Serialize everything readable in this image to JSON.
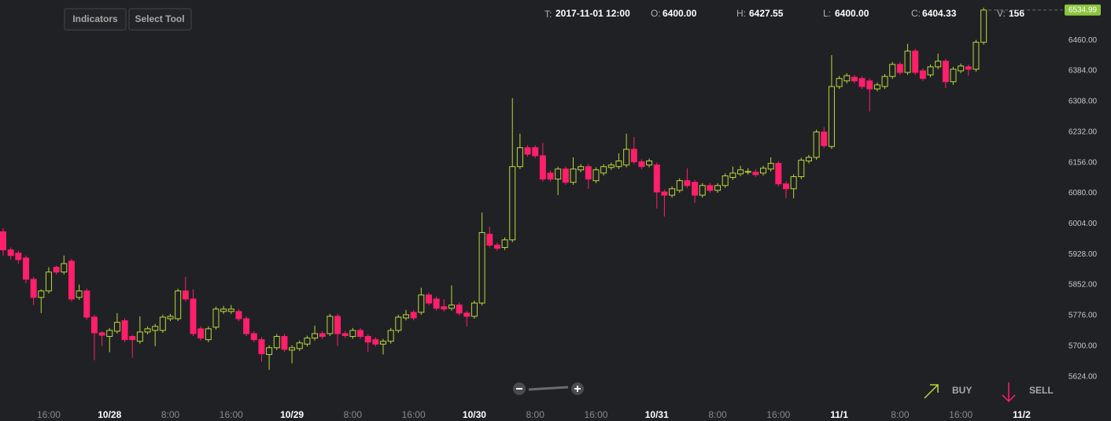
{
  "toolbar": [
    "Indicators",
    "Select Tool"
  ],
  "header": [
    {
      "label": "T:",
      "value": "2017-11-01 12:00"
    },
    {
      "label": "O:",
      "value": "6400.00"
    },
    {
      "label": "H:",
      "value": "6427.55"
    },
    {
      "label": "L:",
      "value": "6400.00"
    },
    {
      "label": "C:",
      "value": "6404.33"
    },
    {
      "label": "V:",
      "value": "156"
    }
  ],
  "actions": [
    "BUY",
    "SELL"
  ],
  "chart_data": {
    "type": "candlestick",
    "categories": [
      null,
      null,
      null,
      null,
      null,
      null,
      "16:00",
      null,
      null,
      null,
      null,
      null,
      null,
      null,
      "10/28",
      null,
      null,
      null,
      null,
      null,
      null,
      null,
      "8:00",
      null,
      null,
      null,
      null,
      null,
      null,
      null,
      "16:00",
      null,
      null,
      null,
      null,
      null,
      null,
      null,
      "10/29",
      null,
      null,
      null,
      null,
      null,
      null,
      null,
      "8:00",
      null,
      null,
      null,
      null,
      null,
      null,
      null,
      "16:00",
      null,
      null,
      null,
      null,
      null,
      null,
      null,
      "10/30",
      null,
      null,
      null,
      null,
      null,
      null,
      null,
      "8:00",
      null,
      null,
      null,
      null,
      null,
      null,
      null,
      "16:00",
      null,
      null,
      null,
      null,
      null,
      null,
      null,
      "10/31",
      null,
      null,
      null,
      null,
      null,
      null,
      null,
      "8:00",
      null,
      null,
      null,
      null,
      null,
      null,
      null,
      "16:00",
      null,
      null,
      null,
      null,
      null,
      null,
      null,
      "11/1",
      null,
      null,
      null,
      null,
      null,
      null,
      null,
      "8:00",
      null,
      null,
      null,
      null,
      null,
      null,
      null,
      "16:00",
      null,
      null,
      null,
      null,
      null,
      null,
      null,
      "11/2"
    ],
    "open": [
      5984,
      5939,
      5931,
      5919,
      5866,
      5821,
      5837,
      5896,
      5884,
      5911,
      5821,
      5837,
      5772,
      5733,
      5724,
      5737,
      5763,
      5724,
      5712,
      5735,
      5739,
      5739,
      5768,
      5768,
      5837,
      5817,
      5743,
      5716,
      5747,
      5786,
      5786,
      5786,
      5768,
      5731,
      5716,
      5679,
      5696,
      5724,
      5690,
      5694,
      5705,
      5720,
      5731,
      5731,
      5774,
      5731,
      5724,
      5739,
      5724,
      5716,
      5705,
      5712,
      5739,
      5770,
      5784,
      5784,
      5827,
      5817,
      5798,
      5794,
      5802,
      5782,
      5774,
      5807,
      5978,
      5951,
      5945,
      5964,
      6146,
      6193,
      6193,
      6173,
      6130,
      6115,
      6140,
      6107,
      6138,
      6146,
      6111,
      6130,
      6144,
      6146,
      6150,
      6189,
      6158,
      6150,
      6150,
      6083,
      6075,
      6087,
      6111,
      6107,
      6075,
      6099,
      6087,
      6099,
      6119,
      6128,
      6132,
      6132,
      6130,
      6140,
      6154,
      6103,
      6091,
      6121,
      6160,
      6169,
      6232,
      6196,
      6345,
      6359,
      6368,
      6365,
      6359,
      6339,
      6345,
      6370,
      6400,
      6380,
      6433,
      6384,
      6374,
      6394,
      6408,
      6357,
      6384,
      6394,
      6388,
      6455,
      null,
      null,
      null,
      null,
      null
    ],
    "high": [
      5993,
      5945,
      5937,
      5925,
      5872,
      5841,
      5896,
      5900,
      5925,
      5917,
      5853,
      5843,
      5778,
      5737,
      5745,
      5782,
      5769,
      5728,
      5774,
      5749,
      5755,
      5778,
      5780,
      5843,
      5872,
      5841,
      5749,
      5749,
      5798,
      5800,
      5802,
      5792,
      5774,
      5737,
      5722,
      5702,
      5730,
      5730,
      5702,
      5714,
      5726,
      5751,
      5737,
      5780,
      5780,
      5737,
      5745,
      5745,
      5730,
      5722,
      5718,
      5745,
      5778,
      5790,
      5790,
      5845,
      5833,
      5823,
      5817,
      5851,
      5808,
      5788,
      5813,
      6032,
      5997,
      5957,
      5970,
      6316,
      6228,
      6199,
      6199,
      6205,
      6136,
      6146,
      6146,
      6169,
      6152,
      6152,
      6144,
      6152,
      6156,
      6179,
      6228,
      6220,
      6164,
      6166,
      6156,
      6089,
      6097,
      6117,
      6142,
      6113,
      6105,
      6105,
      6105,
      6129,
      6146,
      6148,
      6142,
      6140,
      6148,
      6169,
      6160,
      6109,
      6127,
      6168,
      6175,
      6238,
      6244,
      6423,
      6371,
      6378,
      6374,
      6371,
      6365,
      6355,
      6376,
      6406,
      6406,
      6451,
      6439,
      6390,
      6400,
      6427,
      6414,
      6394,
      6402,
      6400,
      6461,
      6541,
      null,
      null,
      null,
      null,
      null
    ],
    "low": [
      5925,
      5915,
      5905,
      5856,
      5802,
      5782,
      5831,
      5878,
      5878,
      5811,
      5815,
      5766,
      5665,
      5700,
      5685,
      5731,
      5710,
      5671,
      5706,
      5729,
      5700,
      5733,
      5762,
      5762,
      5811,
      5725,
      5714,
      5710,
      5741,
      5780,
      5780,
      5762,
      5725,
      5710,
      5661,
      5641,
      5690,
      5686,
      5657,
      5688,
      5699,
      5714,
      5718,
      5725,
      5700,
      5720,
      5718,
      5718,
      5685,
      5699,
      5679,
      5706,
      5733,
      5764,
      5764,
      5778,
      5801,
      5788,
      5786,
      5788,
      5776,
      5749,
      5768,
      5801,
      5945,
      5937,
      5939,
      5958,
      6140,
      6171,
      6167,
      6109,
      6109,
      6075,
      6101,
      6101,
      6132,
      6091,
      6105,
      6124,
      6138,
      6140,
      6144,
      6152,
      6140,
      6144,
      6042,
      6022,
      6069,
      6081,
      6093,
      6056,
      6069,
      6081,
      6081,
      6093,
      6113,
      6122,
      6126,
      6120,
      6124,
      6134,
      6097,
      6067,
      6067,
      6115,
      6154,
      6163,
      6192,
      6190,
      6339,
      6353,
      6353,
      6339,
      6283,
      6333,
      6339,
      6364,
      6374,
      6374,
      6374,
      6359,
      6368,
      6388,
      6341,
      6349,
      6378,
      6372,
      6382,
      6449,
      null,
      null,
      null,
      null,
      null
    ],
    "close": [
      5939,
      5925,
      5915,
      5866,
      5821,
      5837,
      5884,
      5884,
      5905,
      5817,
      5837,
      5772,
      5733,
      5727,
      5739,
      5759,
      5716,
      5716,
      5735,
      5743,
      5749,
      5772,
      5774,
      5837,
      5817,
      5731,
      5720,
      5743,
      5792,
      5792,
      5792,
      5768,
      5731,
      5716,
      5681,
      5696,
      5724,
      5692,
      5696,
      5708,
      5720,
      5731,
      5724,
      5774,
      5731,
      5726,
      5739,
      5724,
      5710,
      5705,
      5712,
      5739,
      5772,
      5778,
      5770,
      5827,
      5807,
      5794,
      5792,
      5802,
      5782,
      5774,
      5807,
      5982,
      5951,
      5943,
      5964,
      6146,
      6193,
      6177,
      6173,
      6115,
      6115,
      6140,
      6107,
      6140,
      6146,
      6115,
      6138,
      6146,
      6150,
      6160,
      6189,
      6158,
      6146,
      6160,
      6083,
      6075,
      6091,
      6111,
      6099,
      6075,
      6099,
      6087,
      6099,
      6123,
      6130,
      6138,
      6134,
      6126,
      6142,
      6154,
      6103,
      6091,
      6121,
      6162,
      6169,
      6232,
      6198,
      6345,
      6365,
      6372,
      6359,
      6345,
      6339,
      6349,
      6370,
      6400,
      6380,
      6433,
      6380,
      6365,
      6394,
      6408,
      6357,
      6388,
      6396,
      6388,
      6455,
      6535,
      null,
      null,
      null,
      null,
      null
    ],
    "up_color": "#b9d83a",
    "down_color": "#ff1f6b",
    "last_price": 6534.99,
    "last_price_color": "#8cc63f",
    "ylim": [
      5553,
      6560
    ],
    "yticks": [
      {
        "value": 6460,
        "label": "6460.00"
      },
      {
        "value": 6384,
        "label": "6384.00"
      },
      {
        "value": 6308,
        "label": "6308.00"
      },
      {
        "value": 6232,
        "label": "6232.00"
      },
      {
        "value": 6156,
        "label": "6156.00"
      },
      {
        "value": 6080,
        "label": "6080.00"
      },
      {
        "value": 6004,
        "label": "6004.00"
      },
      {
        "value": 5928,
        "label": "5928.00"
      },
      {
        "value": 5852,
        "label": "5852.00"
      },
      {
        "value": 5776,
        "label": "5776.00"
      },
      {
        "value": 5700,
        "label": "5700.00"
      },
      {
        "value": 5624,
        "label": "5624.00"
      }
    ],
    "grid": false
  }
}
